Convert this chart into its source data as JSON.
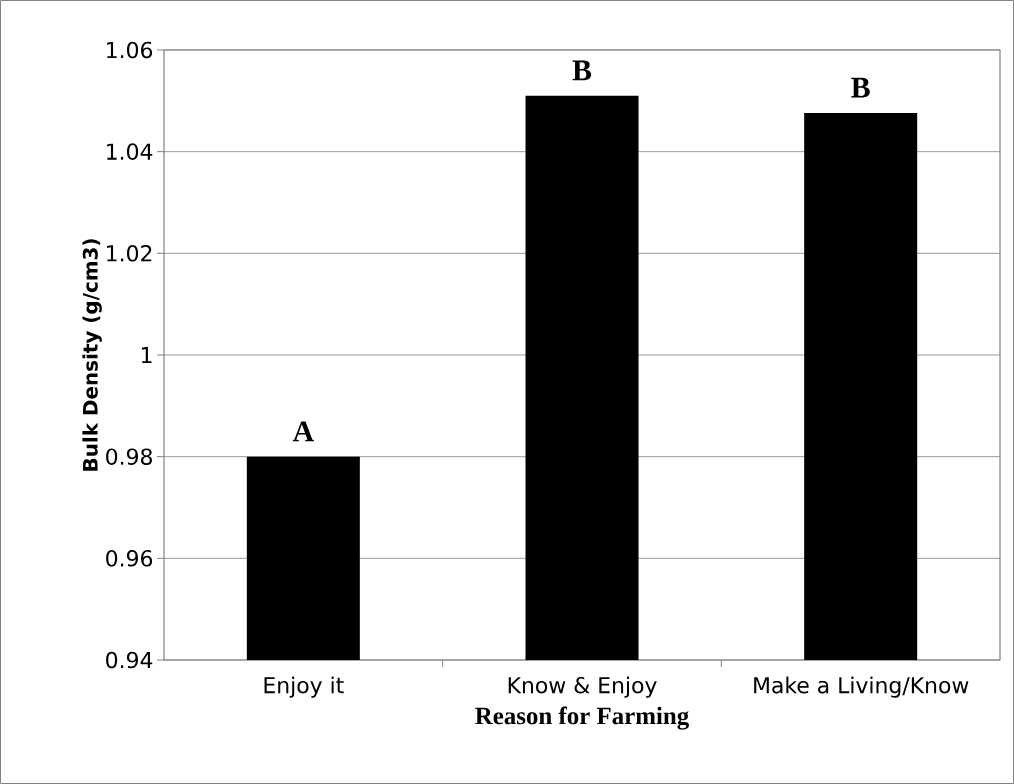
{
  "chart_data": {
    "type": "bar",
    "xlabel": "Reason for Farming",
    "ylabel": "Bulk Density (g/cm3)",
    "categories": [
      "Enjoy it",
      "Know & Enjoy",
      "Make a Living/Know"
    ],
    "values": [
      0.98,
      1.051,
      1.0476
    ],
    "color": "#000000",
    "ylim": [
      0.94,
      1.06
    ],
    "yticks": [
      0.94,
      0.96,
      0.98,
      1,
      1.02,
      1.04,
      1.06
    ],
    "grid": "y",
    "annotations": [
      {
        "text": "A",
        "x": "Enjoy it",
        "y": 0.98
      },
      {
        "text": "B",
        "x": "Know & Enjoy",
        "y": 1.051
      },
      {
        "text": "B",
        "x": "Make a Living/Know",
        "y": 1.0476
      }
    ]
  }
}
